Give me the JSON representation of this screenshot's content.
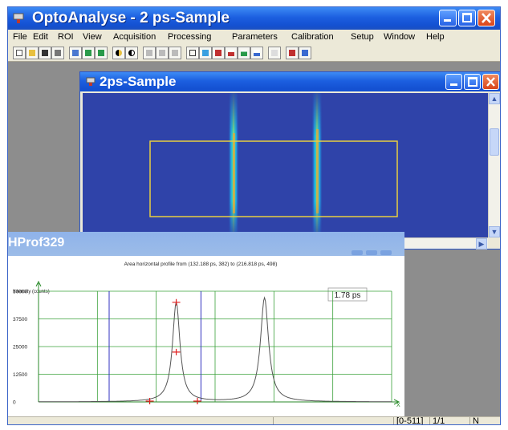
{
  "app": {
    "title": "OptoAnalyse  - 2 ps-Sample"
  },
  "menu": [
    "File",
    "Edit",
    "ROI",
    "View",
    "Acquisition",
    "Processing",
    "Parameters",
    "Calibration",
    "Setup",
    "Window",
    "Help"
  ],
  "toolbar_icons": [
    "new-icon",
    "open-icon",
    "save-icon",
    "print-icon",
    "copy-icon",
    "pin-icon",
    "pin2-icon",
    "contrast-icon",
    "contrast2-icon",
    "align-left-icon",
    "align-center-icon",
    "align-right-icon",
    "frame-icon",
    "color-icon",
    "text-icon",
    "chart-icon",
    "chart2-icon",
    "chart3-icon",
    "blank-icon",
    "help-icon",
    "help2-icon"
  ],
  "image_window": {
    "title": "2ps-Sample"
  },
  "profile_window": {
    "title": "HProf329",
    "chart_data": {
      "type": "line",
      "title": "Area horizontal profile from (132.188 ps, 382) to (216.818 ps, 498)",
      "ylabel": "Intensity (counts)",
      "xlabel": "X",
      "annotation": "1.78 ps",
      "yticks": [
        "50000",
        "37500",
        "25000",
        "12500",
        "0"
      ],
      "ylim": [
        0,
        50000
      ],
      "grid": true,
      "peaks": [
        {
          "center": 0.39,
          "height": 45000,
          "width": 0.022
        },
        {
          "center": 0.64,
          "height": 47000,
          "width": 0.024
        }
      ]
    }
  },
  "statusbar": {
    "range": "[0-511]",
    "page": "1/1",
    "mode": "N"
  }
}
